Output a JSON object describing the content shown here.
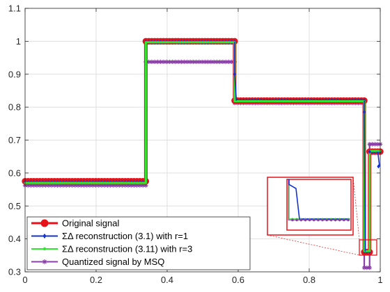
{
  "chart_data": {
    "type": "line",
    "title": "",
    "xlabel": "",
    "ylabel": "",
    "xlim": [
      0,
      1
    ],
    "ylim": [
      0.3,
      1.1
    ],
    "grid": true,
    "legend_position": "bottom-left",
    "x_ticks": [
      {
        "value": 0,
        "label": "0"
      },
      {
        "value": 0.2,
        "label": "0.2"
      },
      {
        "value": 0.4,
        "label": "0.4"
      },
      {
        "value": 0.6,
        "label": "0.6"
      },
      {
        "value": 0.8,
        "label": "0.8"
      },
      {
        "value": 1,
        "label": "1"
      }
    ],
    "y_ticks": [
      {
        "value": 0.3,
        "label": "0.3"
      },
      {
        "value": 0.4,
        "label": "0.4"
      },
      {
        "value": 0.5,
        "label": "0.5"
      },
      {
        "value": 0.6,
        "label": "0.6"
      },
      {
        "value": 0.7,
        "label": "0.7"
      },
      {
        "value": 0.8,
        "label": "0.8"
      },
      {
        "value": 0.9,
        "label": "0.9"
      },
      {
        "value": 1,
        "label": "1"
      },
      {
        "value": 1.1,
        "label": "1.1"
      }
    ],
    "series": [
      {
        "name": "Original signal",
        "color": "#e6121a",
        "marker": "circle",
        "segments": [
          {
            "x0": 0.0,
            "x1": 0.34,
            "y": 0.575
          },
          {
            "x0": 0.34,
            "x1": 0.59,
            "y": 1.0
          },
          {
            "x0": 0.59,
            "x1": 0.955,
            "y": 0.82
          },
          {
            "x0": 0.955,
            "x1": 0.97,
            "y": 0.36
          },
          {
            "x0": 0.97,
            "x1": 1.0,
            "y": 0.665
          }
        ]
      },
      {
        "name": "ΣΔ reconstruction (3.1) with r=1",
        "color": "#1432d2",
        "marker": "diamond",
        "segments": [
          {
            "x0": 0.0,
            "x1": 0.34,
            "y": 0.572
          },
          {
            "x0": 0.34,
            "x1": 0.59,
            "y": 0.998
          },
          {
            "x0": 0.59,
            "x1": 0.955,
            "y": 0.82
          },
          {
            "x0": 0.955,
            "x1": 0.97,
            "y": 0.362
          },
          {
            "x0": 0.97,
            "x1": 1.0,
            "y": 0.665
          }
        ]
      },
      {
        "name": "ΣΔ reconstruction (3.11) with r=3",
        "color": "#2ee82e",
        "marker": "dot",
        "segments": [
          {
            "x0": 0.0,
            "x1": 0.34,
            "y": 0.57
          },
          {
            "x0": 0.34,
            "x1": 0.59,
            "y": 0.997
          },
          {
            "x0": 0.59,
            "x1": 0.955,
            "y": 0.818
          },
          {
            "x0": 0.955,
            "x1": 0.97,
            "y": 0.363
          },
          {
            "x0": 0.97,
            "x1": 1.0,
            "y": 0.667
          }
        ]
      },
      {
        "name": "Quantized signal by MSQ",
        "color": "#8a3fa8",
        "marker": "star",
        "segments": [
          {
            "x0": 0.0,
            "x1": 0.34,
            "y": 0.5625
          },
          {
            "x0": 0.34,
            "x1": 0.59,
            "y": 0.9375
          },
          {
            "x0": 0.59,
            "x1": 0.955,
            "y": 0.8125
          },
          {
            "x0": 0.955,
            "x1": 0.97,
            "y": 0.3125
          },
          {
            "x0": 0.97,
            "x1": 1.0,
            "y": 0.6875
          }
        ]
      }
    ],
    "inset": {
      "zoom_x": [
        0.94,
        0.98
      ],
      "zoom_y": [
        0.35,
        0.375
      ]
    }
  }
}
